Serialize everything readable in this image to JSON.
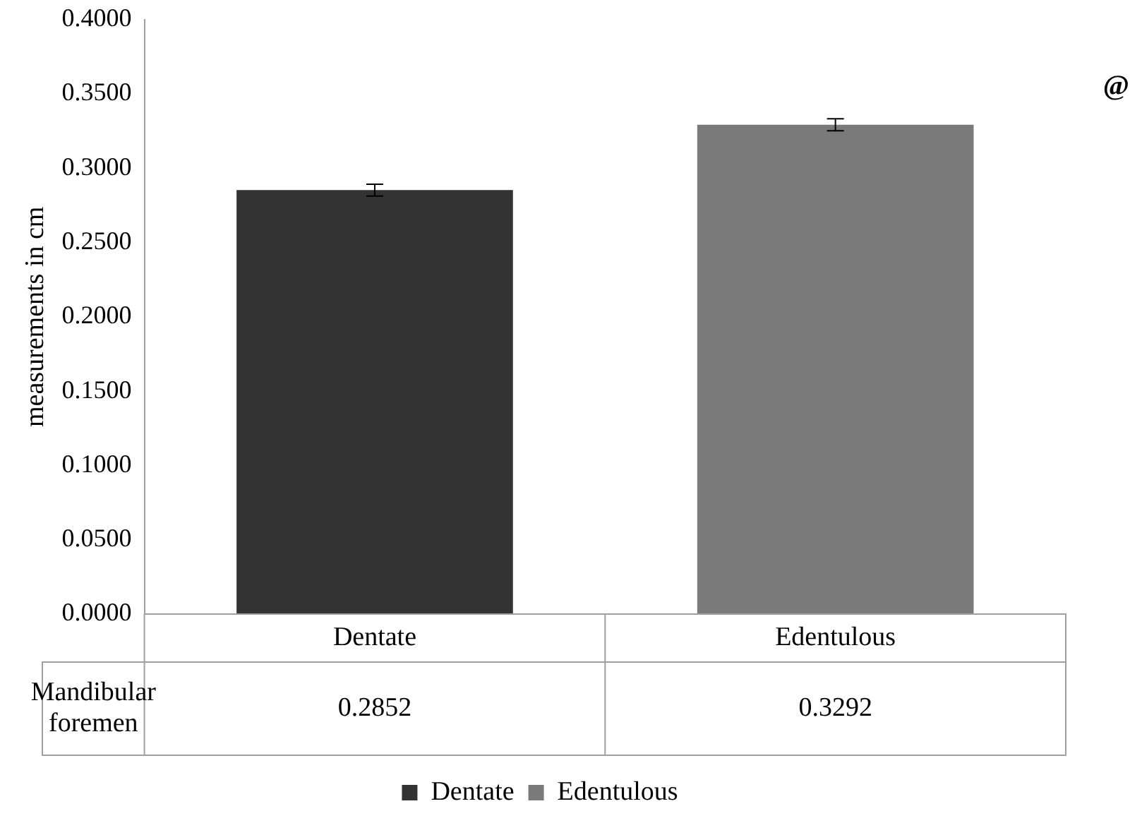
{
  "chart_data": {
    "type": "bar",
    "ylabel": "measurements in cm",
    "categories": [
      "Dentate",
      "Edentulous"
    ],
    "series": [
      {
        "name": "Dentate",
        "color": "#333333",
        "values": [
          0.2852,
          null
        ],
        "errors": [
          0.004,
          null
        ]
      },
      {
        "name": "Edentulous",
        "color": "#7a7a7a",
        "values": [
          null,
          0.3292
        ],
        "errors": [
          null,
          0.004
        ]
      }
    ],
    "ylim": [
      0,
      0.4
    ],
    "yticks": [
      {
        "value": 0,
        "label": "0.0000"
      },
      {
        "value": 0.05,
        "label": "0.0500"
      },
      {
        "value": 0.1,
        "label": "0.1000"
      },
      {
        "value": 0.15,
        "label": "0.1500"
      },
      {
        "value": 0.2,
        "label": "0.2000"
      },
      {
        "value": 0.25,
        "label": "0.2500"
      },
      {
        "value": 0.3,
        "label": "0.3000"
      },
      {
        "value": 0.35,
        "label": "0.3500"
      },
      {
        "value": 0.4,
        "label": "0.4000"
      }
    ],
    "grid": false,
    "legend": "bottom",
    "data_labels": true,
    "annotations": [
      "Mandibular foremen",
      "@"
    ]
  }
}
